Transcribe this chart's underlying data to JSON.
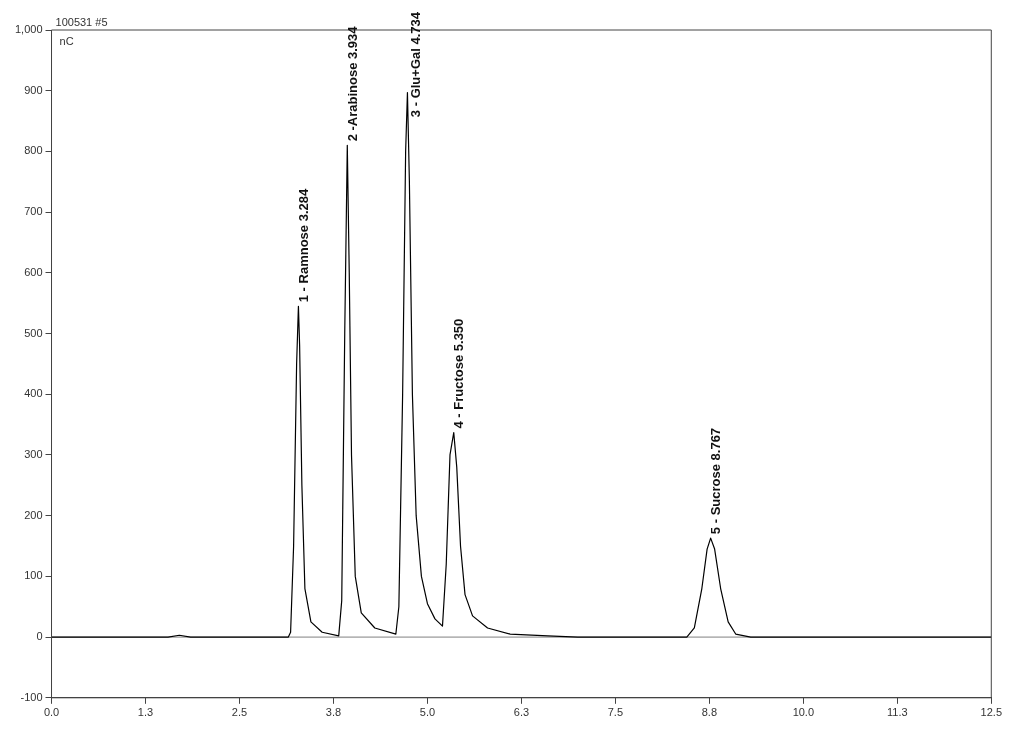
{
  "chart_data": {
    "type": "line",
    "title": "100531 #5",
    "ylabel": "nC",
    "x": [
      0,
      1.55,
      1.7,
      1.85,
      3.15,
      3.18,
      3.22,
      3.26,
      3.284,
      3.3,
      3.33,
      3.37,
      3.45,
      3.6,
      3.82,
      3.86,
      3.9,
      3.934,
      3.96,
      3.99,
      4.04,
      4.12,
      4.3,
      4.58,
      4.62,
      4.67,
      4.71,
      4.734,
      4.76,
      4.8,
      4.85,
      4.92,
      5.0,
      5.1,
      5.2,
      5.25,
      5.3,
      5.35,
      5.39,
      5.44,
      5.5,
      5.6,
      5.8,
      6.1,
      6.6,
      7.0,
      8.45,
      8.55,
      8.65,
      8.72,
      8.767,
      8.82,
      8.9,
      9.0,
      9.1,
      9.3,
      12.5
    ],
    "series": [
      {
        "color": "#000000",
        "values": [
          0,
          0,
          3,
          0,
          0,
          8,
          150,
          450,
          545,
          480,
          250,
          80,
          25,
          8,
          2,
          60,
          500,
          810,
          600,
          300,
          100,
          40,
          15,
          5,
          50,
          400,
          800,
          897,
          750,
          400,
          200,
          100,
          55,
          30,
          18,
          120,
          300,
          337,
          280,
          150,
          70,
          35,
          15,
          5,
          2,
          0,
          0,
          15,
          80,
          145,
          163,
          145,
          80,
          25,
          5,
          0,
          0
        ]
      }
    ],
    "xlim": [
      0,
      12.5
    ],
    "xticks": [
      {
        "value": 0,
        "label": "0.0"
      },
      {
        "value": 1.25,
        "label": "1.3"
      },
      {
        "value": 2.5,
        "label": "2.5"
      },
      {
        "value": 3.75,
        "label": "3.8"
      },
      {
        "value": 5,
        "label": "5.0"
      },
      {
        "value": 6.25,
        "label": "6.3"
      },
      {
        "value": 7.5,
        "label": "7.5"
      },
      {
        "value": 8.75,
        "label": "8.8"
      },
      {
        "value": 10,
        "label": "10.0"
      },
      {
        "value": 11.25,
        "label": "11.3"
      },
      {
        "value": 12.5,
        "label": "12.5"
      }
    ],
    "ylim": [
      -100,
      1000
    ],
    "yticks": [
      -100,
      0,
      100,
      200,
      300,
      400,
      500,
      600,
      700,
      800,
      900,
      {
        "value": 1000,
        "label": "1,000"
      }
    ],
    "ref_lines": [
      {
        "axis": "y",
        "value": 0,
        "color": "#808080"
      }
    ],
    "annotations": [
      {
        "text": "1 - Ramnose 3.284",
        "x": 3.284,
        "y": 545
      },
      {
        "text": "2 -Arabinose 3.934",
        "x": 3.934,
        "y": 810
      },
      {
        "text": "3 - Glu+Gal 4.734",
        "x": 4.734,
        "y": 897
      },
      {
        "text": "4 - Fructose 5.350",
        "x": 5.35,
        "y": 337
      },
      {
        "text": "5 - Sucrose 8.767",
        "x": 8.767,
        "y": 163
      }
    ],
    "grid": false,
    "legend": false,
    "marker": "none",
    "line_style": "solid"
  }
}
